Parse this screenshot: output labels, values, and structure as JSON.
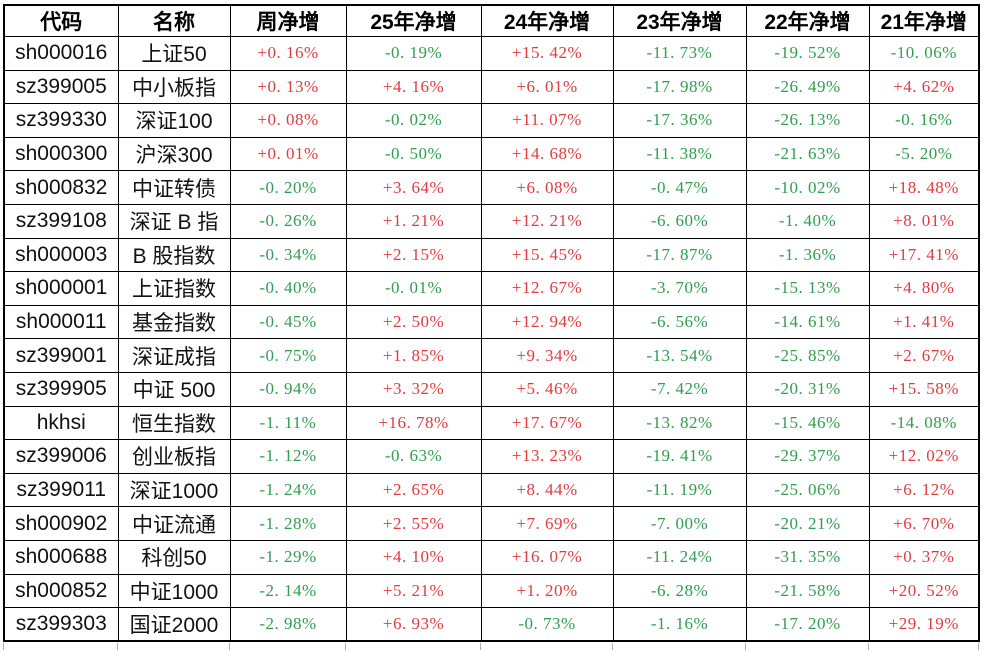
{
  "colors": {
    "positive": "#e23b3f",
    "negative": "#2f9e4f",
    "border": "#000000",
    "background": "#ffffff"
  },
  "table": {
    "columns": [
      "代码",
      "名称",
      "周净增",
      "25年净增",
      "24年净增",
      "23年净增",
      "22年净增",
      "21年净增"
    ],
    "rows": [
      {
        "code": "sh000016",
        "name": "上证50",
        "values": [
          "+0. 16%",
          "-0. 19%",
          "+15. 42%",
          "-11. 73%",
          "-19. 52%",
          "-10. 06%"
        ]
      },
      {
        "code": "sz399005",
        "name": "中小板指",
        "values": [
          "+0. 13%",
          "+4. 16%",
          "+6. 01%",
          "-17. 98%",
          "-26. 49%",
          "+4. 62%"
        ]
      },
      {
        "code": "sz399330",
        "name": "深证100",
        "values": [
          "+0. 08%",
          "-0. 02%",
          "+11. 07%",
          "-17. 36%",
          "-26. 13%",
          "-0. 16%"
        ]
      },
      {
        "code": "sh000300",
        "name": "沪深300",
        "values": [
          "+0. 01%",
          "-0. 50%",
          "+14. 68%",
          "-11. 38%",
          "-21. 63%",
          "-5. 20%"
        ]
      },
      {
        "code": "sh000832",
        "name": "中证转债",
        "values": [
          "-0. 20%",
          "+3. 64%",
          "+6. 08%",
          "-0. 47%",
          "-10. 02%",
          "+18. 48%"
        ]
      },
      {
        "code": "sz399108",
        "name": "深证 B 指",
        "values": [
          "-0. 26%",
          "+1. 21%",
          "+12. 21%",
          "-6. 60%",
          "-1. 40%",
          "+8. 01%"
        ]
      },
      {
        "code": "sh000003",
        "name": "B 股指数",
        "values": [
          "-0. 34%",
          "+2. 15%",
          "+15. 45%",
          "-17. 87%",
          "-1. 36%",
          "+17. 41%"
        ]
      },
      {
        "code": "sh000001",
        "name": "上证指数",
        "values": [
          "-0. 40%",
          "-0. 01%",
          "+12. 67%",
          "-3. 70%",
          "-15. 13%",
          "+4. 80%"
        ]
      },
      {
        "code": "sh000011",
        "name": "基金指数",
        "values": [
          "-0. 45%",
          "+2. 50%",
          "+12. 94%",
          "-6. 56%",
          "-14. 61%",
          "+1. 41%"
        ]
      },
      {
        "code": "sz399001",
        "name": "深证成指",
        "values": [
          "-0. 75%",
          "+1. 85%",
          "+9. 34%",
          "-13. 54%",
          "-25. 85%",
          "+2. 67%"
        ]
      },
      {
        "code": "sz399905",
        "name": "中证 500",
        "values": [
          "-0. 94%",
          "+3. 32%",
          "+5. 46%",
          "-7. 42%",
          "-20. 31%",
          "+15. 58%"
        ]
      },
      {
        "code": "hkhsi",
        "name": "恒生指数",
        "values": [
          "-1. 11%",
          "+16. 78%",
          "+17. 67%",
          "-13. 82%",
          "-15. 46%",
          "-14. 08%"
        ]
      },
      {
        "code": "sz399006",
        "name": "创业板指",
        "values": [
          "-1. 12%",
          "-0. 63%",
          "+13. 23%",
          "-19. 41%",
          "-29. 37%",
          "+12. 02%"
        ]
      },
      {
        "code": "sz399011",
        "name": "深证1000",
        "values": [
          "-1. 24%",
          "+2. 65%",
          "+8. 44%",
          "-11. 19%",
          "-25. 06%",
          "+6. 12%"
        ]
      },
      {
        "code": "sh000902",
        "name": "中证流通",
        "values": [
          "-1. 28%",
          "+2. 55%",
          "+7. 69%",
          "-7. 00%",
          "-20. 21%",
          "+6. 70%"
        ]
      },
      {
        "code": "sh000688",
        "name": "科创50",
        "values": [
          "-1. 29%",
          "+4. 10%",
          "+16. 07%",
          "-11. 24%",
          "-31. 35%",
          "+0. 37%"
        ]
      },
      {
        "code": "sh000852",
        "name": "中证1000",
        "values": [
          "-2. 14%",
          "+5. 21%",
          "+1. 20%",
          "-6. 28%",
          "-21. 58%",
          "+20. 52%"
        ]
      },
      {
        "code": "sz399303",
        "name": "国证2000",
        "values": [
          "-2. 98%",
          "+6. 93%",
          "-0. 73%",
          "-1. 16%",
          "-17. 20%",
          "+29. 19%"
        ]
      }
    ]
  }
}
